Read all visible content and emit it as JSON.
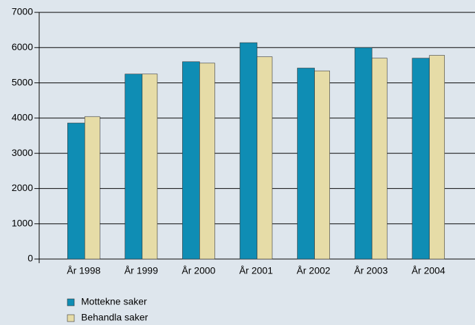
{
  "chart_data": {
    "type": "bar",
    "categories": [
      "År 1998",
      "År 1999",
      "År 2000",
      "År 2001",
      "År 2002",
      "År 2003",
      "År 2004"
    ],
    "series": [
      {
        "name": "Mottekne saker",
        "color": "#0f8db4",
        "values": [
          3860,
          5250,
          5600,
          6140,
          5420,
          6000,
          5700
        ]
      },
      {
        "name": "Behandla saker",
        "color": "#e6dca7",
        "values": [
          4040,
          5250,
          5560,
          5740,
          5340,
          5700,
          5780
        ]
      }
    ],
    "ylim": [
      0,
      7000
    ],
    "yticks": [
      0,
      1000,
      2000,
      3000,
      4000,
      5000,
      6000,
      7000
    ],
    "grid": true,
    "legend": "bottom-left"
  }
}
